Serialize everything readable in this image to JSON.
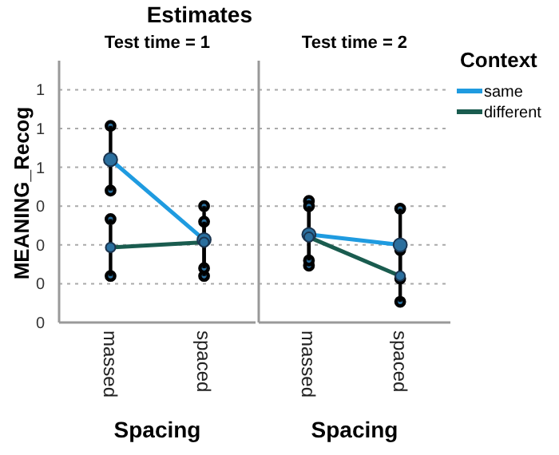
{
  "chart_data": [
    {
      "type": "line",
      "title": "Estimates",
      "subtitle": "Test time = 1",
      "xlabel": "Spacing",
      "ylabel": "MEANING_Recog",
      "categories": [
        "massed",
        "spaced"
      ],
      "series": [
        {
          "color": "#1f9be0",
          "values": [
            0.63,
            0.32
          ],
          "errors": [
            [
              0.51,
              0.76
            ],
            [
              0.18,
              0.45
            ]
          ]
        },
        {
          "color": "#1a5c4f",
          "values": [
            0.29,
            0.31
          ],
          "errors": [
            [
              0.18,
              0.4
            ],
            [
              0.21,
              0.39
            ]
          ]
        }
      ],
      "ylim": [
        0,
        1
      ],
      "yticks": [
        {
          "value": 0,
          "label": "0"
        },
        {
          "value": 0.15,
          "label": "0"
        },
        {
          "value": 0.3,
          "label": "0"
        },
        {
          "value": 0.45,
          "label": "0"
        },
        {
          "value": 0.6,
          "label": "1"
        },
        {
          "value": 0.75,
          "label": "1"
        },
        {
          "value": 0.9,
          "label": "1"
        }
      ],
      "grid": "y",
      "marker": "circle",
      "legend": false
    },
    {
      "type": "line",
      "subtitle": "Test time = 2",
      "xlabel": "Spacing",
      "categories": [
        "massed",
        "spaced"
      ],
      "legend_title": "Context",
      "legend": "right",
      "series": [
        {
          "name": "same",
          "color": "#1f9be0",
          "values": [
            0.34,
            0.3
          ],
          "errors": [
            [
              0.22,
              0.47
            ],
            [
              0.17,
              0.44
            ]
          ]
        },
        {
          "name": "different",
          "color": "#1a5c4f",
          "values": [
            0.33,
            0.18
          ],
          "errors": [
            [
              0.24,
              0.45
            ],
            [
              0.08,
              0.28
            ]
          ]
        }
      ],
      "ylim": [
        0,
        1
      ],
      "yticks": [
        0,
        0.15,
        0.3,
        0.45,
        0.6,
        0.75,
        0.9
      ],
      "grid": "y",
      "marker": "circle",
      "tick_labels": "x"
    }
  ]
}
